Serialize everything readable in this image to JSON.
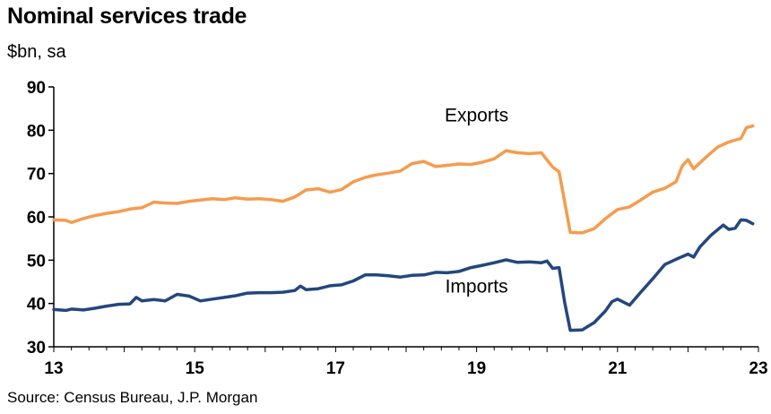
{
  "title": "Nominal services trade",
  "subtitle": "$bn, sa",
  "source": "Source: Census Bureau, J.P. Morgan",
  "chart_data": {
    "type": "line",
    "title": "Nominal services trade",
    "ylabel": "$bn, sa",
    "ylim": [
      30,
      90
    ],
    "yticks": [
      30,
      40,
      50,
      60,
      70,
      80,
      90
    ],
    "xlim": [
      2013,
      2023
    ],
    "xticks": [
      13,
      15,
      17,
      19,
      21,
      23
    ],
    "grid": false,
    "legend": "inline labels",
    "series": [
      {
        "name": "Exports",
        "color": "#F59C4E",
        "points": [
          [
            2013.0,
            59.3
          ],
          [
            2013.17,
            59.2
          ],
          [
            2013.25,
            58.7
          ],
          [
            2013.42,
            59.6
          ],
          [
            2013.58,
            60.3
          ],
          [
            2013.75,
            60.8
          ],
          [
            2013.92,
            61.2
          ],
          [
            2014.08,
            61.8
          ],
          [
            2014.25,
            62.1
          ],
          [
            2014.42,
            63.4
          ],
          [
            2014.58,
            63.2
          ],
          [
            2014.75,
            63.1
          ],
          [
            2014.92,
            63.6
          ],
          [
            2015.08,
            63.9
          ],
          [
            2015.25,
            64.2
          ],
          [
            2015.42,
            64.0
          ],
          [
            2015.58,
            64.4
          ],
          [
            2015.75,
            64.1
          ],
          [
            2015.92,
            64.2
          ],
          [
            2016.08,
            64.0
          ],
          [
            2016.25,
            63.6
          ],
          [
            2016.42,
            64.6
          ],
          [
            2016.58,
            66.2
          ],
          [
            2016.75,
            66.5
          ],
          [
            2016.92,
            65.7
          ],
          [
            2017.08,
            66.3
          ],
          [
            2017.25,
            68.1
          ],
          [
            2017.42,
            69.1
          ],
          [
            2017.58,
            69.7
          ],
          [
            2017.75,
            70.1
          ],
          [
            2017.92,
            70.6
          ],
          [
            2018.08,
            72.3
          ],
          [
            2018.25,
            72.8
          ],
          [
            2018.42,
            71.6
          ],
          [
            2018.58,
            71.9
          ],
          [
            2018.75,
            72.2
          ],
          [
            2018.92,
            72.1
          ],
          [
            2019.08,
            72.6
          ],
          [
            2019.25,
            73.4
          ],
          [
            2019.42,
            75.3
          ],
          [
            2019.58,
            74.8
          ],
          [
            2019.75,
            74.6
          ],
          [
            2019.92,
            74.8
          ],
          [
            2020.08,
            71.5
          ],
          [
            2020.17,
            70.4
          ],
          [
            2020.25,
            63.4
          ],
          [
            2020.33,
            56.4
          ],
          [
            2020.5,
            56.3
          ],
          [
            2020.67,
            57.3
          ],
          [
            2020.83,
            59.6
          ],
          [
            2021.0,
            61.7
          ],
          [
            2021.17,
            62.3
          ],
          [
            2021.33,
            63.9
          ],
          [
            2021.5,
            65.7
          ],
          [
            2021.67,
            66.6
          ],
          [
            2021.83,
            68.1
          ],
          [
            2021.92,
            71.8
          ],
          [
            2022.0,
            73.2
          ],
          [
            2022.08,
            71.1
          ],
          [
            2022.25,
            73.7
          ],
          [
            2022.42,
            76.1
          ],
          [
            2022.58,
            77.3
          ],
          [
            2022.75,
            78.1
          ],
          [
            2022.83,
            80.6
          ],
          [
            2022.92,
            81.0
          ]
        ]
      },
      {
        "name": "Imports",
        "color": "#23477D",
        "points": [
          [
            2013.0,
            38.6
          ],
          [
            2013.17,
            38.4
          ],
          [
            2013.25,
            38.7
          ],
          [
            2013.42,
            38.5
          ],
          [
            2013.58,
            38.9
          ],
          [
            2013.75,
            39.4
          ],
          [
            2013.92,
            39.8
          ],
          [
            2014.08,
            39.9
          ],
          [
            2014.17,
            41.4
          ],
          [
            2014.25,
            40.6
          ],
          [
            2014.42,
            40.9
          ],
          [
            2014.58,
            40.6
          ],
          [
            2014.75,
            42.1
          ],
          [
            2014.92,
            41.7
          ],
          [
            2015.08,
            40.6
          ],
          [
            2015.25,
            41.0
          ],
          [
            2015.42,
            41.4
          ],
          [
            2015.58,
            41.8
          ],
          [
            2015.75,
            42.4
          ],
          [
            2015.92,
            42.5
          ],
          [
            2016.08,
            42.5
          ],
          [
            2016.25,
            42.6
          ],
          [
            2016.42,
            43.0
          ],
          [
            2016.5,
            44.0
          ],
          [
            2016.58,
            43.2
          ],
          [
            2016.75,
            43.4
          ],
          [
            2016.92,
            44.1
          ],
          [
            2017.08,
            44.3
          ],
          [
            2017.25,
            45.2
          ],
          [
            2017.42,
            46.6
          ],
          [
            2017.58,
            46.6
          ],
          [
            2017.75,
            46.4
          ],
          [
            2017.92,
            46.1
          ],
          [
            2018.08,
            46.5
          ],
          [
            2018.25,
            46.6
          ],
          [
            2018.42,
            47.2
          ],
          [
            2018.58,
            47.1
          ],
          [
            2018.75,
            47.4
          ],
          [
            2018.92,
            48.3
          ],
          [
            2019.08,
            48.8
          ],
          [
            2019.25,
            49.4
          ],
          [
            2019.42,
            50.1
          ],
          [
            2019.58,
            49.5
          ],
          [
            2019.75,
            49.6
          ],
          [
            2019.92,
            49.4
          ],
          [
            2020.0,
            49.8
          ],
          [
            2020.08,
            48.1
          ],
          [
            2020.17,
            48.3
          ],
          [
            2020.25,
            40.2
          ],
          [
            2020.33,
            33.8
          ],
          [
            2020.5,
            33.9
          ],
          [
            2020.67,
            35.6
          ],
          [
            2020.83,
            38.3
          ],
          [
            2020.92,
            40.4
          ],
          [
            2021.0,
            41.0
          ],
          [
            2021.17,
            39.6
          ],
          [
            2021.33,
            42.6
          ],
          [
            2021.5,
            45.7
          ],
          [
            2021.67,
            49.0
          ],
          [
            2021.83,
            50.2
          ],
          [
            2022.0,
            51.4
          ],
          [
            2022.08,
            50.7
          ],
          [
            2022.17,
            53.1
          ],
          [
            2022.33,
            55.8
          ],
          [
            2022.5,
            58.1
          ],
          [
            2022.58,
            57.1
          ],
          [
            2022.67,
            57.4
          ],
          [
            2022.75,
            59.3
          ],
          [
            2022.83,
            59.2
          ],
          [
            2022.92,
            58.4
          ]
        ]
      }
    ],
    "labels": [
      {
        "text": "Exports",
        "x": 2019.0,
        "y": 82.0
      },
      {
        "text": "Imports",
        "x": 2019.0,
        "y": 42.5
      }
    ]
  }
}
